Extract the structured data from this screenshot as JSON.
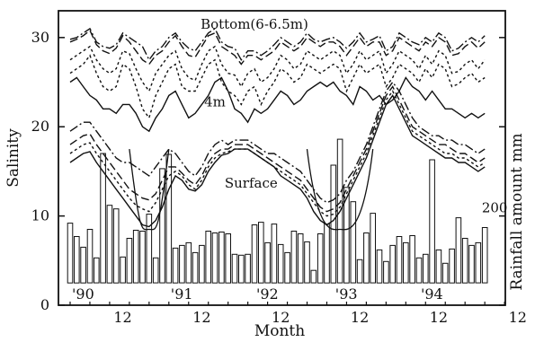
{
  "chart_data": {
    "type": "bar",
    "title": "",
    "xlabel": "Month",
    "ylabel": "Salinity",
    "y2label": "Rainfall amount mm",
    "ylim": [
      0,
      33
    ],
    "y_ticks": [
      0,
      10,
      20,
      30
    ],
    "x_ticks": [
      {
        "label": "12",
        "month": 8
      },
      {
        "label": "12",
        "month": 20
      },
      {
        "label": "12",
        "month": 32
      },
      {
        "label": "12",
        "month": 44
      },
      {
        "label": "12",
        "month": 56
      },
      {
        "label": "12",
        "month": 68
      }
    ],
    "year_labels": [
      {
        "label": "'90",
        "month": 0
      },
      {
        "label": "'91",
        "month": 15
      },
      {
        "label": "'92",
        "month": 28
      },
      {
        "label": "'93",
        "month": 40
      },
      {
        "label": "'94",
        "month": 53
      }
    ],
    "annotations": [
      {
        "text": "Bottom(6-6.5m)",
        "month": 28,
        "y": 31
      },
      {
        "text": "4m",
        "month": 22,
        "y": 22.3
      },
      {
        "text": "Surface",
        "month": 27.5,
        "y": 13.2
      },
      {
        "text": "200",
        "month": 64.5,
        "y": 10.4
      }
    ],
    "series": [
      {
        "style": "dashdot",
        "values": [
          29.8,
          30,
          30.5,
          31,
          29.5,
          29,
          28.8,
          29.2,
          30.5,
          30,
          29.5,
          29,
          27.5,
          28.5,
          29,
          30,
          30.5,
          29.5,
          28.8,
          28.5,
          29.5,
          30.5,
          31,
          29.5,
          29,
          28.8,
          27.5,
          28.5,
          28.5,
          28,
          28.5,
          29.2,
          30,
          29.5,
          29,
          29.5,
          30.5,
          29.8,
          29.5,
          29.8,
          30,
          29.5,
          28.8,
          29.5,
          30.5,
          29.5,
          29.8,
          30.2,
          28.5,
          29,
          30.5,
          30,
          29.5,
          29.2,
          30,
          29.5,
          30.5,
          30,
          28.5,
          28.8,
          29.5,
          30,
          29.5,
          30.2
        ]
      },
      {
        "style": "dashed",
        "values": [
          29.5,
          29.8,
          30.2,
          30.8,
          29.2,
          28.5,
          28.2,
          28.8,
          30.2,
          29.5,
          28.5,
          27.5,
          27,
          28,
          28.5,
          29.5,
          30.2,
          29,
          28,
          27.8,
          29,
          30.2,
          30.5,
          29,
          28.5,
          28,
          27,
          28,
          28,
          27.5,
          28,
          28.5,
          29.5,
          29,
          28.5,
          29,
          30,
          29.5,
          29,
          29.5,
          29.5,
          29,
          28,
          29,
          30,
          29,
          29.5,
          29.5,
          28,
          28.5,
          30,
          29.5,
          29,
          28.5,
          29.5,
          29,
          30,
          29.5,
          28,
          28.2,
          29,
          29.5,
          28.8,
          29.5
        ]
      },
      {
        "style": "dotted",
        "values": [
          27.5,
          28,
          28.5,
          29,
          27.5,
          26.5,
          26,
          26.5,
          28.5,
          28.2,
          26.5,
          25,
          24,
          26,
          27,
          28,
          28.5,
          26.5,
          25.5,
          25.2,
          27,
          28.5,
          29,
          27,
          26,
          25.8,
          24.5,
          26,
          26.5,
          25,
          25.5,
          26.5,
          28,
          27.5,
          26.5,
          27,
          28.5,
          28,
          27.5,
          28,
          28.5,
          28,
          26,
          27,
          28.5,
          27.5,
          28,
          28.5,
          26,
          27,
          28.5,
          28,
          27.5,
          26.5,
          28,
          27,
          28.5,
          28,
          26,
          26.2,
          27,
          27.5,
          26.5,
          27.5
        ]
      },
      {
        "style": "dotted",
        "values": [
          26,
          26.5,
          27,
          28,
          26,
          24.5,
          24,
          24.5,
          27,
          26.5,
          24.5,
          22,
          21,
          23.5,
          25,
          26.5,
          27,
          24.5,
          24,
          24,
          25.5,
          27,
          27.5,
          25,
          24,
          23.5,
          22.5,
          24,
          24.5,
          22.5,
          24,
          25,
          26.5,
          26,
          25,
          25.5,
          27,
          26.5,
          26,
          26.5,
          27,
          26.5,
          24,
          25.5,
          27,
          26,
          26.5,
          27,
          24.5,
          25.5,
          27,
          26.5,
          26,
          25,
          26.5,
          25.5,
          27,
          26.5,
          24.5,
          24.8,
          25.5,
          26,
          25,
          25.5
        ]
      },
      {
        "style": "solid",
        "values": [
          25,
          25.5,
          24.5,
          23.5,
          23,
          22,
          22,
          21.5,
          22.5,
          22.5,
          21.5,
          20,
          19.5,
          21,
          22,
          23.5,
          24,
          22.5,
          21,
          21.5,
          22.5,
          23.5,
          25,
          25.5,
          24,
          22,
          21.5,
          20.5,
          22,
          21.5,
          22,
          23,
          24,
          23.5,
          22.5,
          23,
          24,
          24.5,
          25,
          24.5,
          25,
          24,
          23.5,
          22.5,
          24.5,
          24,
          23,
          23.5,
          22.5,
          23,
          24,
          25.5,
          24.5,
          24,
          23,
          24,
          23,
          22,
          22,
          21.5,
          21,
          21.5,
          21,
          21.5
        ]
      },
      {
        "style": "dashdot",
        "values": [
          19.5,
          20,
          20.5,
          20.5,
          19.5,
          18.5,
          17.5,
          16.5,
          16,
          16,
          15.5,
          15,
          14.5,
          15.5,
          16.5,
          17.5,
          17,
          16,
          15,
          14.5,
          15.5,
          17,
          18,
          18.5,
          18,
          18.5,
          18.5,
          18.5,
          18,
          17.5,
          17,
          17,
          16.5,
          16,
          15.5,
          15,
          14,
          13,
          12,
          11.5,
          11.8,
          12.5,
          14,
          15,
          16.5,
          18,
          20,
          22,
          24,
          25,
          24,
          22.5,
          21,
          20,
          19.5,
          19,
          19,
          18.5,
          18.5,
          18,
          18,
          17.5,
          17,
          17.5
        ]
      },
      {
        "style": "dashed",
        "values": [
          18,
          18.5,
          19,
          19.2,
          18,
          17,
          16,
          15,
          14,
          13,
          12.5,
          12,
          11.8,
          12.5,
          14,
          15.5,
          15.5,
          14.8,
          14,
          13.5,
          14.5,
          16,
          17,
          17.5,
          17.5,
          18,
          18,
          18,
          17.5,
          17,
          16.5,
          16,
          15.5,
          15,
          14.5,
          14,
          13,
          12,
          11,
          10.5,
          10.8,
          11.5,
          13,
          14.5,
          16,
          17.5,
          19.5,
          21.5,
          23.5,
          24.5,
          23,
          21.5,
          20,
          19.5,
          19,
          18.5,
          18,
          18,
          17.5,
          17,
          17,
          16.5,
          16,
          16.5
        ]
      },
      {
        "style": "dotted",
        "values": [
          17,
          17.5,
          18,
          18.2,
          17,
          16,
          15,
          14,
          13,
          12,
          11.2,
          10.8,
          10.5,
          11.5,
          13,
          14.5,
          15,
          14.5,
          13.5,
          13,
          14,
          15.5,
          16.5,
          17,
          17.2,
          17.5,
          17.5,
          17.5,
          17,
          16.5,
          16,
          15.5,
          15,
          14.5,
          14,
          13.5,
          12.5,
          11.5,
          10.5,
          10,
          10.2,
          11,
          12.5,
          14,
          15.5,
          17,
          19,
          21,
          23,
          24,
          22.5,
          21,
          19.5,
          19,
          18.5,
          18,
          17.5,
          17,
          17,
          16.5,
          16.5,
          16,
          15.5,
          16
        ]
      },
      {
        "style": "solid",
        "values": [
          16,
          16.5,
          17,
          17.2,
          16,
          15,
          14,
          13,
          12,
          11,
          10,
          9,
          8.8,
          9.5,
          11,
          13,
          14.5,
          14,
          13,
          12.8,
          13.5,
          15,
          16,
          16.8,
          17,
          17.5,
          17.5,
          17.5,
          17,
          16.5,
          16,
          15.5,
          14.5,
          14,
          13.5,
          13,
          12,
          10.5,
          9.5,
          9,
          9.5,
          10.5,
          12,
          13.5,
          15,
          16.5,
          18.5,
          20.5,
          22.5,
          23.5,
          22,
          20.5,
          19,
          18.5,
          18,
          17.5,
          17,
          16.5,
          16.5,
          16,
          16,
          15.5,
          15,
          15.5
        ]
      }
    ],
    "bars": {
      "name": "Rainfall amount",
      "values": [
        6.7,
        5.2,
        4,
        6,
        2.8,
        14.5,
        8.7,
        8.3,
        2.9,
        5,
        5.9,
        5.8,
        7.7,
        2.8,
        12.8,
        14.4,
        3.9,
        4.2,
        4.5,
        3.4,
        4.2,
        5.8,
        5.6,
        5.7,
        5.5,
        3.2,
        3.1,
        3.2,
        6.5,
        6.8,
        4.5,
        6.6,
        4.3,
        3.4,
        5.8,
        5.5,
        4.6,
        1.4,
        5.5,
        6.6,
        13.2,
        16.1,
        10.7,
        9.1,
        2.6,
        5.6,
        7.8,
        3.7,
        2.4,
        4.2,
        5.2,
        4.5,
        5.3,
        2.8,
        3.2,
        13.8,
        3.7,
        2.2,
        3.8,
        7.3,
        5,
        4.2,
        4.5,
        6.2
      ]
    },
    "bar_baseline": 2.5,
    "curve": [
      17.5,
      8.5
    ]
  }
}
